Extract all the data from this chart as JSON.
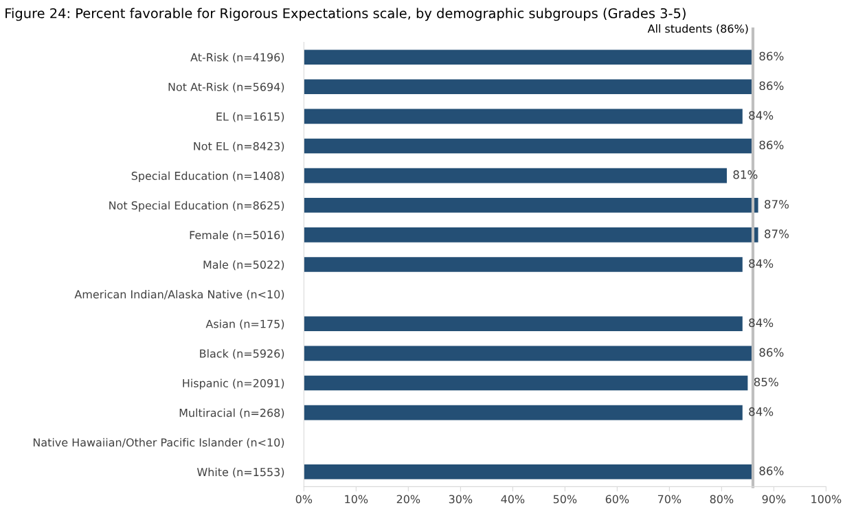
{
  "chart_data": {
    "type": "bar",
    "orientation": "horizontal",
    "title": "Figure 24: Percent favorable for Rigorous Expectations scale, by demographic subgroups (Grades 3-5)",
    "categories": [
      "At-Risk (n=4196)",
      "Not At-Risk (n=5694)",
      "EL (n=1615)",
      "Not EL (n=8423)",
      "Special Education (n=1408)",
      "Not Special Education (n=8625)",
      "Female (n=5016)",
      "Male (n=5022)",
      "American Indian/Alaska Native (n<10)",
      "Asian (n=175)",
      "Black (n=5926)",
      "Hispanic (n=2091)",
      "Multiracial (n=268)",
      "Native Hawaiian/Other Pacific Islander (n<10)",
      "White (n=1553)"
    ],
    "values": [
      86,
      86,
      84,
      86,
      81,
      87,
      87,
      84,
      null,
      84,
      86,
      85,
      84,
      null,
      86
    ],
    "color": "#244f75",
    "value_labels": [
      "86%",
      "86%",
      "84%",
      "86%",
      "81%",
      "87%",
      "87%",
      "84%",
      null,
      "84%",
      "86%",
      "85%",
      "84%",
      null,
      "86%"
    ],
    "xlim": [
      0,
      100
    ],
    "xticks": [
      {
        "value": 0,
        "label": "0%"
      },
      {
        "value": 10,
        "label": "10%"
      },
      {
        "value": 20,
        "label": "20%"
      },
      {
        "value": 30,
        "label": "30%"
      },
      {
        "value": 40,
        "label": "40%"
      },
      {
        "value": 50,
        "label": "50%"
      },
      {
        "value": 60,
        "label": "60%"
      },
      {
        "value": 70,
        "label": "70%"
      },
      {
        "value": 80,
        "label": "80%"
      },
      {
        "value": 90,
        "label": "90%"
      },
      {
        "value": 100,
        "label": "100%"
      }
    ],
    "ref_lines": [
      {
        "axis": "x",
        "value": 86,
        "label": "All students (86%)",
        "color": "#bfbfbf"
      }
    ],
    "grid": false
  }
}
